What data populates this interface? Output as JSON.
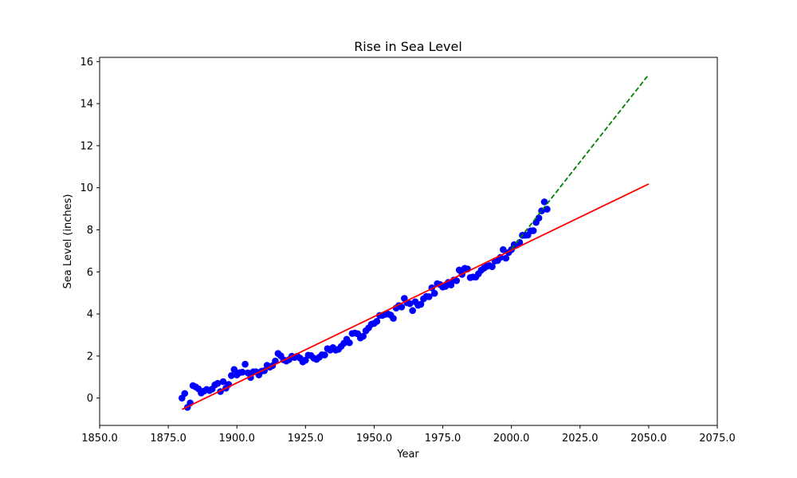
{
  "chart_data": {
    "type": "scatter",
    "title": "Rise in Sea Level",
    "xlabel": "Year",
    "ylabel": "Sea Level (inches)",
    "xlim": [
      1850,
      2075
    ],
    "ylim": [
      -1.3,
      16.2
    ],
    "xticks": [
      1850,
      1875,
      1900,
      1925,
      1950,
      1975,
      2000,
      2025,
      2050,
      2075
    ],
    "xtick_labels": [
      "1850.0",
      "1875.0",
      "1900.0",
      "1925.0",
      "1950.0",
      "1975.0",
      "2000.0",
      "2025.0",
      "2050.0",
      "2075.0"
    ],
    "yticks": [
      0,
      2,
      4,
      6,
      8,
      10,
      12,
      14,
      16
    ],
    "ytick_labels": [
      "0",
      "2",
      "4",
      "6",
      "8",
      "10",
      "12",
      "14",
      "16"
    ],
    "grid": false,
    "series": [
      {
        "kind": "scatter",
        "color": "#0000ff",
        "x": [
          1880,
          1881,
          1882,
          1883,
          1884,
          1885,
          1886,
          1887,
          1888,
          1889,
          1890,
          1891,
          1892,
          1893,
          1894,
          1895,
          1896,
          1897,
          1898,
          1899,
          1900,
          1901,
          1902,
          1903,
          1904,
          1905,
          1906,
          1907,
          1908,
          1909,
          1910,
          1911,
          1912,
          1913,
          1914,
          1915,
          1916,
          1917,
          1918,
          1919,
          1920,
          1921,
          1922,
          1923,
          1924,
          1925,
          1926,
          1927,
          1928,
          1929,
          1930,
          1931,
          1932,
          1933,
          1934,
          1935,
          1936,
          1937,
          1938,
          1939,
          1940,
          1941,
          1942,
          1943,
          1944,
          1945,
          1946,
          1947,
          1948,
          1949,
          1950,
          1951,
          1952,
          1953,
          1954,
          1955,
          1956,
          1957,
          1958,
          1959,
          1960,
          1961,
          1962,
          1963,
          1964,
          1965,
          1966,
          1967,
          1968,
          1969,
          1970,
          1971,
          1972,
          1973,
          1974,
          1975,
          1976,
          1977,
          1978,
          1979,
          1980,
          1981,
          1982,
          1983,
          1984,
          1985,
          1986,
          1987,
          1988,
          1989,
          1990,
          1991,
          1992,
          1993,
          1994,
          1995,
          1996,
          1997,
          1998,
          1999,
          2000,
          2001,
          2002,
          2003,
          2004,
          2005,
          2006,
          2007,
          2008,
          2009,
          2010,
          2011,
          2012,
          2013
        ],
        "y": [
          0.0,
          0.22,
          -0.44,
          -0.23,
          0.59,
          0.53,
          0.44,
          0.24,
          0.33,
          0.41,
          0.36,
          0.43,
          0.63,
          0.7,
          0.31,
          0.78,
          0.47,
          0.65,
          1.07,
          1.36,
          1.1,
          1.21,
          1.23,
          1.61,
          1.2,
          0.98,
          1.25,
          1.25,
          1.1,
          1.28,
          1.3,
          1.56,
          1.47,
          1.54,
          1.76,
          2.12,
          2.01,
          1.82,
          1.76,
          1.83,
          1.99,
          1.93,
          1.99,
          1.9,
          1.72,
          1.8,
          2.04,
          2.02,
          1.9,
          1.84,
          1.94,
          2.06,
          2.05,
          2.35,
          2.28,
          2.4,
          2.28,
          2.32,
          2.46,
          2.61,
          2.8,
          2.63,
          3.07,
          3.09,
          3.06,
          2.86,
          2.94,
          3.2,
          3.34,
          3.51,
          3.55,
          3.65,
          3.93,
          3.93,
          3.98,
          4.0,
          3.95,
          3.79,
          4.28,
          4.4,
          4.33,
          4.74,
          4.53,
          4.49,
          4.16,
          4.58,
          4.41,
          4.46,
          4.72,
          4.83,
          4.82,
          5.24,
          4.98,
          5.44,
          5.4,
          5.28,
          5.31,
          5.5,
          5.38,
          5.61,
          5.58,
          6.09,
          5.88,
          6.17,
          6.14,
          5.73,
          5.76,
          5.75,
          5.91,
          6.08,
          6.18,
          6.26,
          6.3,
          6.25,
          6.52,
          6.54,
          6.69,
          7.06,
          6.65,
          6.92,
          7.06,
          7.29,
          7.28,
          7.4,
          7.74,
          7.74,
          7.75,
          7.95,
          7.96,
          8.35,
          8.56,
          8.9,
          9.33,
          8.98
        ]
      },
      {
        "kind": "line",
        "color": "#ff0000",
        "style": "solid",
        "x": [
          1880,
          2050
        ],
        "y": [
          -0.54,
          10.18
        ]
      },
      {
        "kind": "line",
        "color": "#008000",
        "style": "dashed",
        "x": [
          2000,
          2050
        ],
        "y": [
          7.08,
          15.38
        ]
      }
    ]
  }
}
